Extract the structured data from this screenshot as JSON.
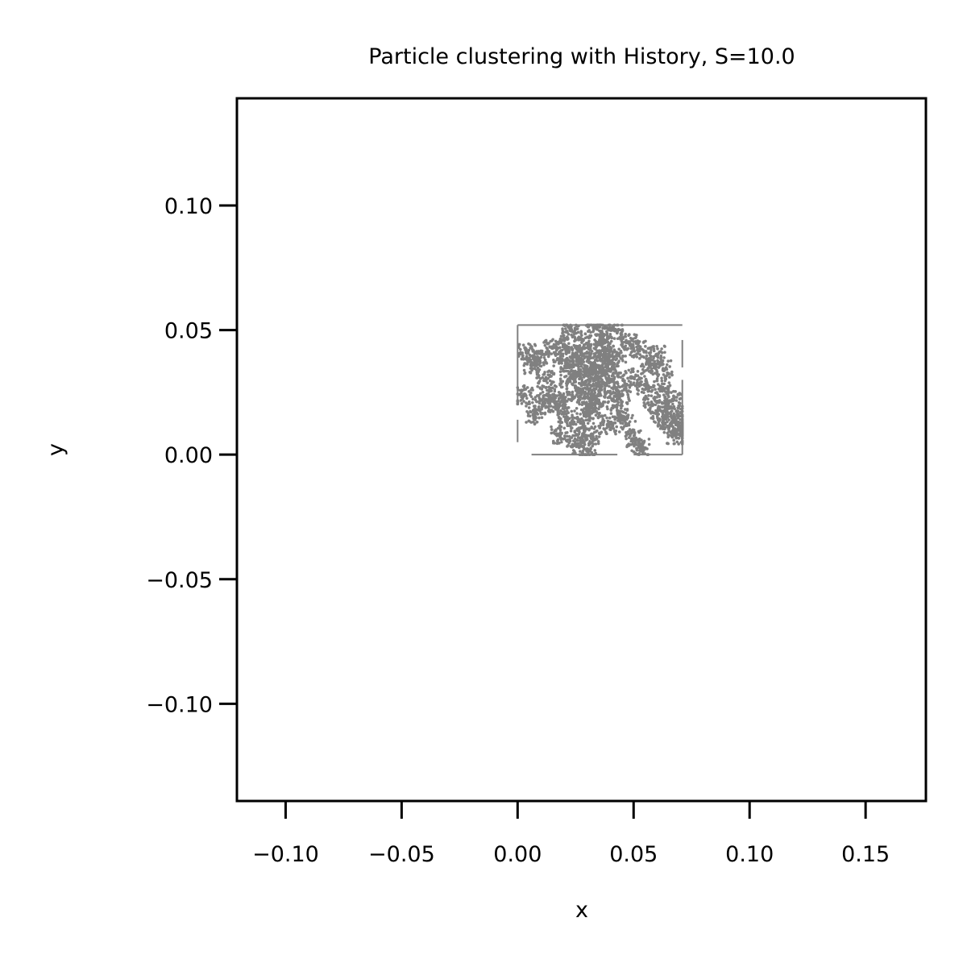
{
  "chart_data": {
    "type": "scatter",
    "title": "Particle clustering with History, S=10.0",
    "xlabel": "x",
    "ylabel": "y",
    "xlim": [
      -0.121,
      0.176
    ],
    "ylim": [
      -0.139,
      0.143
    ],
    "xticks": [
      -0.1,
      -0.05,
      0.0,
      0.05,
      0.1,
      0.15
    ],
    "xtick_labels": [
      "−0.10",
      "−0.05",
      "0.00",
      "0.05",
      "0.10",
      "0.15"
    ],
    "yticks": [
      -0.1,
      -0.05,
      0.0,
      0.05,
      0.1
    ],
    "ytick_labels": [
      "−0.10",
      "−0.05",
      "0.00",
      "0.05",
      "0.10"
    ],
    "grid": false,
    "marker_color": "#808080",
    "cluster_region": {
      "x": [
        0.0,
        0.071
      ],
      "y": [
        0.0,
        0.052
      ]
    },
    "series": [
      {
        "points": [
          [
            0.03,
            0.034
          ],
          [
            0.033,
            0.03
          ],
          [
            0.027,
            0.026
          ],
          [
            0.036,
            0.038
          ],
          [
            0.024,
            0.04
          ],
          [
            0.031,
            0.02
          ],
          [
            0.029,
            0.016
          ],
          [
            0.038,
            0.028
          ],
          [
            0.022,
            0.03
          ],
          [
            0.034,
            0.044
          ],
          [
            0.028,
            0.046
          ],
          [
            0.04,
            0.034
          ],
          [
            0.019,
            0.038
          ],
          [
            0.026,
            0.01
          ],
          [
            0.032,
            0.008
          ],
          [
            0.043,
            0.04
          ],
          [
            0.015,
            0.043
          ],
          [
            0.009,
            0.038
          ],
          [
            0.006,
            0.036
          ],
          [
            0.012,
            0.03
          ],
          [
            0.02,
            0.022
          ],
          [
            0.045,
            0.024
          ],
          [
            0.049,
            0.031
          ],
          [
            0.052,
            0.042
          ],
          [
            0.055,
            0.028
          ],
          [
            0.058,
            0.02
          ],
          [
            0.061,
            0.014
          ],
          [
            0.064,
            0.018
          ],
          [
            0.066,
            0.012
          ],
          [
            0.068,
            0.008
          ],
          [
            0.069,
            0.016
          ],
          [
            0.063,
            0.034
          ],
          [
            0.06,
            0.04
          ],
          [
            0.037,
            0.048
          ],
          [
            0.042,
            0.05
          ],
          [
            0.023,
            0.05
          ],
          [
            0.017,
            0.02
          ],
          [
            0.013,
            0.024
          ],
          [
            0.025,
            0.004
          ],
          [
            0.03,
            0.002
          ],
          [
            0.05,
            0.006
          ],
          [
            0.053,
            0.003
          ],
          [
            0.039,
            0.012
          ],
          [
            0.044,
            0.016
          ],
          [
            0.047,
            0.012
          ],
          [
            0.035,
            0.024
          ],
          [
            0.041,
            0.022
          ],
          [
            0.021,
            0.014
          ],
          [
            0.018,
            0.008
          ],
          [
            0.011,
            0.02
          ],
          [
            0.004,
            0.041
          ],
          [
            0.003,
            0.024
          ],
          [
            0.007,
            0.016
          ],
          [
            0.057,
            0.036
          ],
          [
            0.062,
            0.026
          ],
          [
            0.067,
            0.022
          ],
          [
            0.07,
            0.01
          ],
          [
            0.048,
            0.045
          ],
          [
            0.033,
            0.051
          ],
          [
            0.028,
            0.04
          ],
          [
            0.026,
            0.032
          ],
          [
            0.032,
            0.036
          ],
          [
            0.035,
            0.031
          ],
          [
            0.029,
            0.023
          ],
          [
            0.033,
            0.018
          ],
          [
            0.037,
            0.042
          ],
          [
            0.024,
            0.036
          ],
          [
            0.02,
            0.044
          ],
          [
            0.039,
            0.038
          ],
          [
            0.041,
            0.03
          ]
        ]
      }
    ]
  }
}
